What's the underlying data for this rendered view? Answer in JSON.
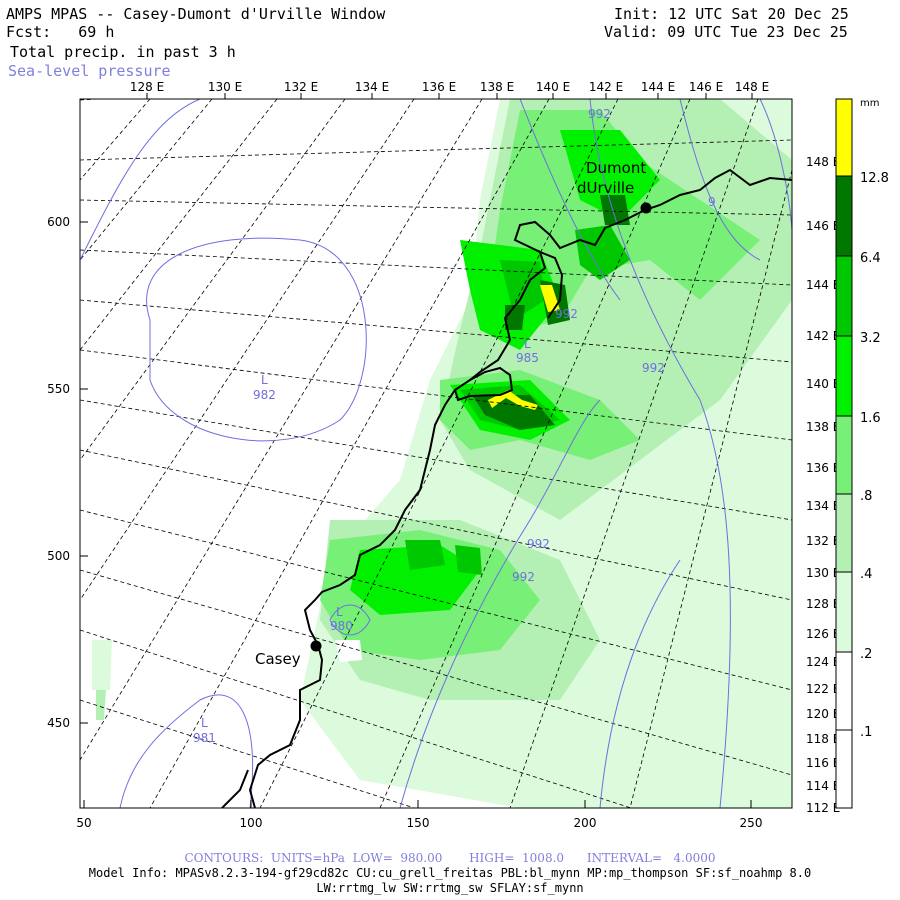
{
  "header": {
    "title": "AMPS MPAS -- Casey-Dumont d'Urville Window",
    "fcst": "Fcst:   69 h",
    "init": "Init: 12 UTC Sat 20 Dec 25",
    "valid": "Valid: 09 UTC Tue 23 Dec 25",
    "field": "Total precip. in past 3 h",
    "overlay": "Sea-level pressure"
  },
  "axes": {
    "top_lon_labels": [
      "128 E",
      "130 E",
      "132 E",
      "134 E",
      "136 E",
      "138 E",
      "140 E",
      "142 E",
      "144 E",
      "146 E",
      "148 E"
    ],
    "left_y_labels": [
      "600",
      "550",
      "500",
      "450"
    ],
    "bottom_x_labels": [
      "50",
      "100",
      "150",
      "200",
      "250"
    ],
    "right_lon_labels": [
      "148 E",
      "146 E",
      "144 E",
      "142 E",
      "140 E",
      "138 E",
      "136 E",
      "134 E",
      "132 E",
      "130 E",
      "128 E",
      "126 E",
      "124 E",
      "122 E",
      "120 E",
      "118 E",
      "116 E",
      "114 E",
      "112 E"
    ]
  },
  "places": [
    {
      "name": "Dumont",
      "name2": "dUrville"
    },
    {
      "name": "Casey"
    }
  ],
  "pressure_labels": [
    {
      "text": "992"
    },
    {
      "text": "992"
    },
    {
      "text": "L"
    },
    {
      "text": "985"
    },
    {
      "text": "992"
    },
    {
      "text": "L"
    },
    {
      "text": "982"
    },
    {
      "text": "992"
    },
    {
      "text": "992"
    },
    {
      "text": "L"
    },
    {
      "text": "980"
    },
    {
      "text": "L"
    },
    {
      "text": "981"
    },
    {
      "text": "9"
    }
  ],
  "colorbar": {
    "unit": "mm",
    "levels": [
      "12.8",
      "6.4",
      "3.2",
      "1.6",
      ".8",
      ".4",
      ".2",
      ".1"
    ],
    "colors": {
      "c128": "#ffff00",
      "c64": "#007800",
      "c32": "#00c800",
      "c16": "#00f000",
      "c08": "#78f078",
      "c04": "#b4f0b4",
      "c02": "#dcfadc",
      "c01": "#ffffff"
    }
  },
  "footer": {
    "contours": "CONTOURS:  UNITS=hPa  LOW=  980.00       HIGH=  1008.0      INTERVAL=   4.0000",
    "model_info": "Model Info: MPASv8.2.3-194-gf29cd82c CU:cu_grell_freitas PBL:bl_mynn MP:mp_thompson SF:sf_noahmp 8.0",
    "model_info2": "LW:rrtmg_lw SW:rrtmg_sw SFLAY:sf_mynn"
  }
}
